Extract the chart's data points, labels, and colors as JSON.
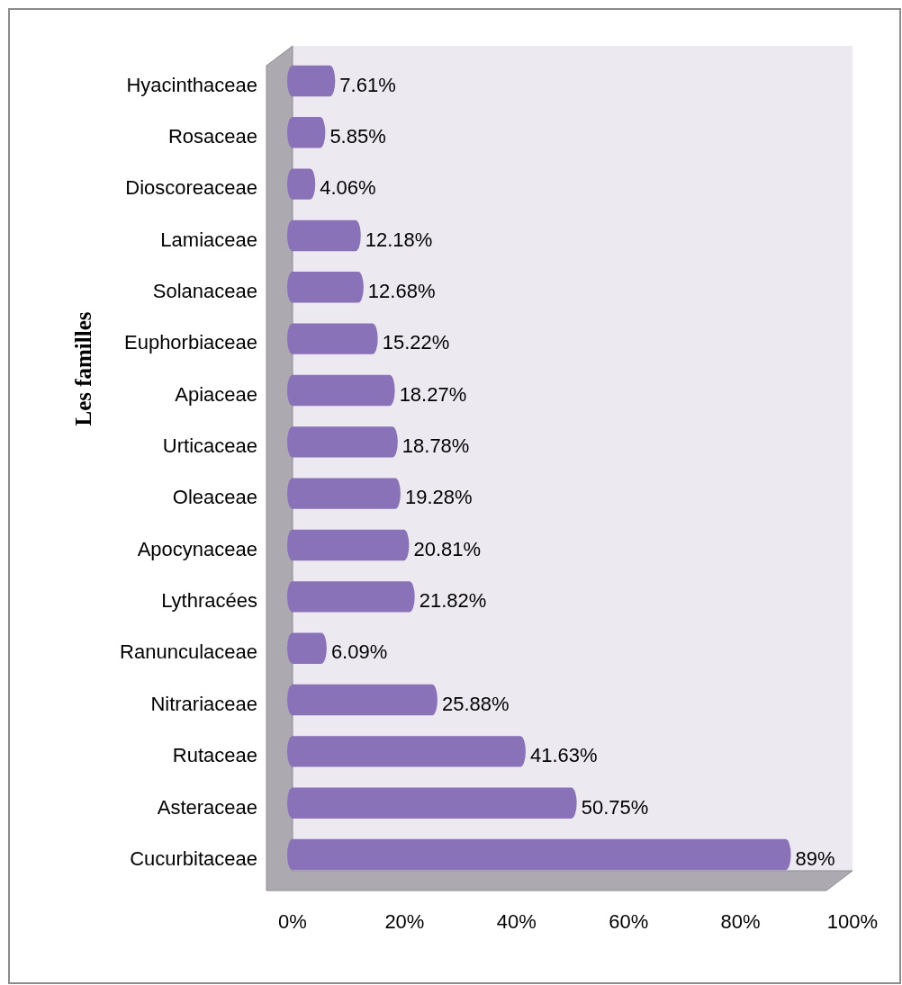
{
  "chart_data": {
    "type": "bar",
    "orientation": "horizontal",
    "ylabel": "Les familles",
    "categories": [
      "Hyacinthaceae",
      "Rosaceae",
      "Dioscoreaceae",
      "Lamiaceae",
      "Solanaceae",
      "Euphorbiaceae",
      "Apiaceae",
      "Urticaceae",
      "Oleaceae",
      "Apocynaceae",
      "Lythracées",
      "Ranunculaceae",
      "Nitrariaceae",
      "Rutaceae",
      "Asteraceae",
      "Cucurbitaceae"
    ],
    "values": [
      7.61,
      5.85,
      4.06,
      12.18,
      12.68,
      15.22,
      18.27,
      18.78,
      19.28,
      20.81,
      21.82,
      6.09,
      25.88,
      41.63,
      50.75,
      89
    ],
    "value_labels": [
      "7.61%",
      "5.85%",
      "4.06%",
      "12.18%",
      "12.68%",
      "15.22%",
      "18.27%",
      "18.78%",
      "19.28%",
      "20.81%",
      "21.82%",
      "6.09%",
      "25.88%",
      "41.63%",
      "50.75%",
      "89%"
    ],
    "color": "#8a72b8",
    "xlim": [
      0,
      100
    ],
    "xticks": [
      {
        "value": 0,
        "label": "0%"
      },
      {
        "value": 20,
        "label": "20%"
      },
      {
        "value": 40,
        "label": "40%"
      },
      {
        "value": 60,
        "label": "60%"
      },
      {
        "value": 80,
        "label": "80%"
      },
      {
        "value": 100,
        "label": "100%"
      }
    ]
  }
}
